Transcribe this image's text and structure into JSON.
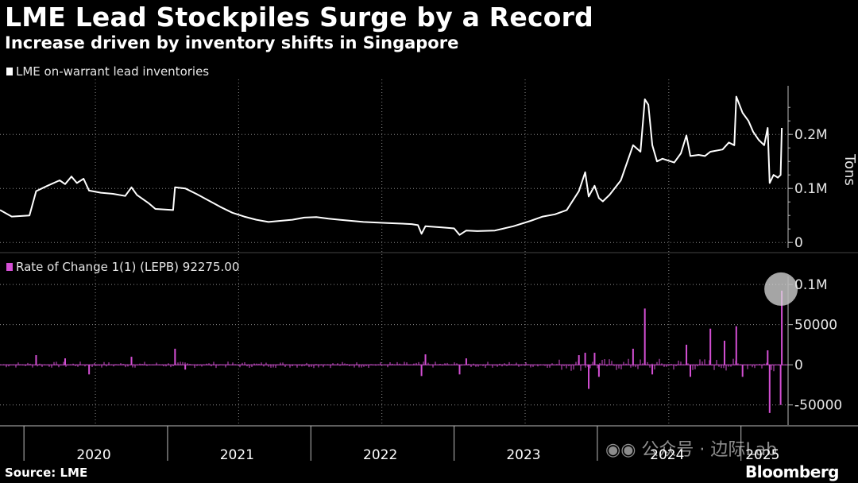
{
  "header": {
    "title": "LME Lead Stockpiles Surge by a Record",
    "subtitle": "Increase driven by inventory shifts in Singapore"
  },
  "colors": {
    "background": "#000000",
    "line": "#ffffff",
    "roc": "#d44fd4",
    "grid": "#8a8a8a"
  },
  "footer": {
    "source": "Source: LME",
    "brand": "Bloomberg",
    "watermark": "公众号 · 边际Lab"
  },
  "chart_data": [
    {
      "type": "line",
      "legend": "LME on-warrant lead inventories",
      "ylabel": "Tons",
      "ylim": [
        -10000,
        290000
      ],
      "yticks": [
        {
          "v": 0,
          "label": "0"
        },
        {
          "v": 100000,
          "label": "0.1M"
        },
        {
          "v": 200000,
          "label": "0.2M"
        }
      ],
      "x_domain": [
        "2019-11-01",
        "2025-05-01"
      ],
      "x_ticks": [
        "2020",
        "2021",
        "2022",
        "2023",
        "2024",
        "2025"
      ],
      "x_grid": [
        "2020-07-01",
        "2021-07-01",
        "2022-07-01",
        "2023-07-01",
        "2024-07-01"
      ],
      "points": [
        [
          "2019-11-01",
          60000
        ],
        [
          "2019-12-01",
          48000
        ],
        [
          "2020-01-15",
          50000
        ],
        [
          "2020-02-01",
          95000
        ],
        [
          "2020-03-01",
          105000
        ],
        [
          "2020-04-01",
          115000
        ],
        [
          "2020-04-15",
          108000
        ],
        [
          "2020-05-01",
          122000
        ],
        [
          "2020-05-15",
          110000
        ],
        [
          "2020-06-01",
          118000
        ],
        [
          "2020-06-15",
          96000
        ],
        [
          "2020-07-15",
          92000
        ],
        [
          "2020-08-15",
          90000
        ],
        [
          "2020-09-15",
          86000
        ],
        [
          "2020-10-01",
          102000
        ],
        [
          "2020-10-15",
          88000
        ],
        [
          "2020-11-15",
          72000
        ],
        [
          "2020-12-01",
          62000
        ],
        [
          "2021-01-15",
          60000
        ],
        [
          "2021-01-20",
          102000
        ],
        [
          "2021-02-15",
          100000
        ],
        [
          "2021-03-15",
          90000
        ],
        [
          "2021-04-15",
          78000
        ],
        [
          "2021-05-15",
          66000
        ],
        [
          "2021-06-15",
          55000
        ],
        [
          "2021-07-15",
          48000
        ],
        [
          "2021-08-15",
          42000
        ],
        [
          "2021-09-15",
          38000
        ],
        [
          "2021-10-15",
          40000
        ],
        [
          "2021-11-15",
          42000
        ],
        [
          "2021-12-15",
          46000
        ],
        [
          "2022-01-15",
          47000
        ],
        [
          "2022-02-15",
          44000
        ],
        [
          "2022-03-15",
          42000
        ],
        [
          "2022-05-15",
          38000
        ],
        [
          "2022-07-15",
          36000
        ],
        [
          "2022-09-15",
          34000
        ],
        [
          "2022-10-01",
          32000
        ],
        [
          "2022-10-10",
          16000
        ],
        [
          "2022-10-20",
          30000
        ],
        [
          "2022-12-01",
          28000
        ],
        [
          "2023-01-01",
          26000
        ],
        [
          "2023-01-15",
          14000
        ],
        [
          "2023-02-01",
          22000
        ],
        [
          "2023-03-01",
          21000
        ],
        [
          "2023-04-15",
          22000
        ],
        [
          "2023-06-01",
          30000
        ],
        [
          "2023-07-15",
          40000
        ],
        [
          "2023-08-15",
          48000
        ],
        [
          "2023-09-15",
          52000
        ],
        [
          "2023-10-15",
          60000
        ],
        [
          "2023-11-15",
          95000
        ],
        [
          "2023-12-01",
          130000
        ],
        [
          "2023-12-10",
          85000
        ],
        [
          "2023-12-25",
          105000
        ],
        [
          "2024-01-05",
          82000
        ],
        [
          "2024-01-15",
          76000
        ],
        [
          "2024-02-01",
          88000
        ],
        [
          "2024-03-01",
          115000
        ],
        [
          "2024-04-01",
          180000
        ],
        [
          "2024-04-20",
          168000
        ],
        [
          "2024-05-01",
          265000
        ],
        [
          "2024-05-10",
          255000
        ],
        [
          "2024-05-20",
          180000
        ],
        [
          "2024-06-01",
          150000
        ],
        [
          "2024-06-15",
          155000
        ],
        [
          "2024-07-15",
          148000
        ],
        [
          "2024-08-01",
          165000
        ],
        [
          "2024-08-15",
          198000
        ],
        [
          "2024-08-25",
          160000
        ],
        [
          "2024-09-15",
          162000
        ],
        [
          "2024-10-01",
          160000
        ],
        [
          "2024-10-15",
          168000
        ],
        [
          "2024-11-15",
          172000
        ],
        [
          "2024-12-01",
          185000
        ],
        [
          "2024-12-15",
          180000
        ],
        [
          "2024-12-20",
          270000
        ],
        [
          "2025-01-05",
          240000
        ],
        [
          "2025-01-20",
          225000
        ],
        [
          "2025-02-01",
          205000
        ],
        [
          "2025-02-15",
          190000
        ],
        [
          "2025-03-01",
          180000
        ],
        [
          "2025-03-10",
          212000
        ],
        [
          "2025-03-15",
          110000
        ],
        [
          "2025-03-25",
          125000
        ],
        [
          "2025-04-05",
          120000
        ],
        [
          "2025-04-12",
          125000
        ],
        [
          "2025-04-15",
          212000
        ]
      ]
    },
    {
      "type": "bar",
      "legend": "Rate of Change 1(1) (LEPB) 92275.00",
      "ylim": [
        -75000,
        110000
      ],
      "yticks": [
        {
          "v": -50000,
          "label": "-50000"
        },
        {
          "v": 0,
          "label": "0"
        },
        {
          "v": 50000,
          "label": "50000"
        },
        {
          "v": 100000,
          "label": "0.1M"
        }
      ],
      "highlight": {
        "x": "2025-04-15",
        "value": 92275
      },
      "spikes": [
        [
          "2020-02-01",
          12000
        ],
        [
          "2020-04-15",
          8000
        ],
        [
          "2020-06-15",
          -12000
        ],
        [
          "2020-10-01",
          10000
        ],
        [
          "2021-01-20",
          20000
        ],
        [
          "2021-02-15",
          -6000
        ],
        [
          "2022-10-10",
          -14000
        ],
        [
          "2022-10-20",
          13000
        ],
        [
          "2023-01-15",
          -12000
        ],
        [
          "2023-02-01",
          8000
        ],
        [
          "2023-11-15",
          12000
        ],
        [
          "2023-12-01",
          15000
        ],
        [
          "2023-12-10",
          -30000
        ],
        [
          "2023-12-25",
          15000
        ],
        [
          "2024-01-05",
          -15000
        ],
        [
          "2024-04-01",
          20000
        ],
        [
          "2024-05-01",
          70000
        ],
        [
          "2024-05-20",
          -12000
        ],
        [
          "2024-08-15",
          25000
        ],
        [
          "2024-08-25",
          -15000
        ],
        [
          "2024-10-15",
          45000
        ],
        [
          "2024-11-20",
          30000
        ],
        [
          "2024-12-20",
          48000
        ],
        [
          "2025-01-05",
          -15000
        ],
        [
          "2025-03-10",
          18000
        ],
        [
          "2025-03-15",
          -60000
        ],
        [
          "2025-04-12",
          -50000
        ],
        [
          "2025-04-15",
          92275
        ]
      ]
    }
  ]
}
